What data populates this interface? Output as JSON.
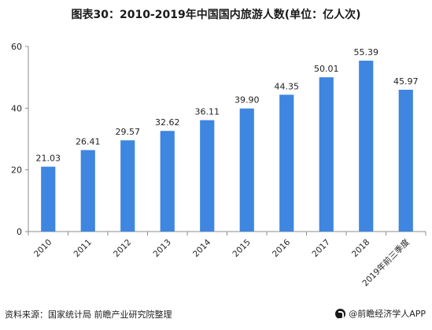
{
  "chart_data": {
    "type": "bar",
    "title": "图表30：2010-2019年中国国内旅游人数(单位：亿人次)",
    "categories": [
      "2010",
      "2011",
      "2012",
      "2013",
      "2014",
      "2015",
      "2016",
      "2017",
      "2018",
      "2019年前三季度"
    ],
    "values": [
      21.03,
      26.41,
      29.57,
      32.62,
      36.11,
      39.9,
      44.35,
      50.01,
      55.39,
      45.97
    ],
    "value_labels": [
      "21.03",
      "26.41",
      "29.57",
      "32.62",
      "36.11",
      "39.90",
      "44.35",
      "50.01",
      "55.39",
      "45.97"
    ],
    "y_ticks": [
      "0",
      "20",
      "40",
      "60"
    ],
    "ylim": [
      0,
      60
    ],
    "grid": false,
    "bar_color": "#3e86e0"
  },
  "footer": {
    "source": "资料来源：国家统计局 前瞻产业研究院整理",
    "brand": "@前瞻经济学人APP"
  }
}
